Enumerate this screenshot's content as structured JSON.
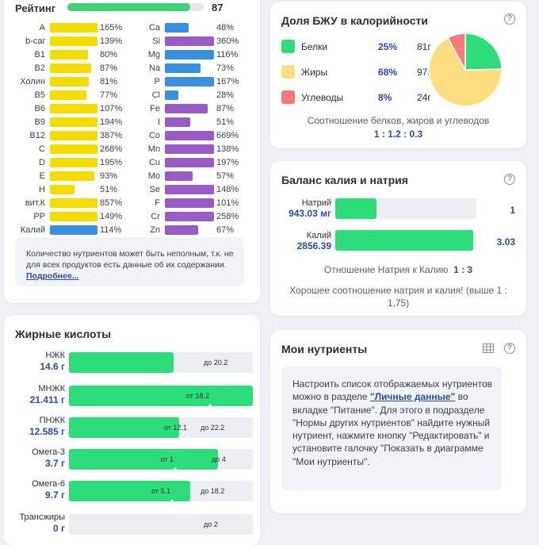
{
  "rating": {
    "label": "Рейтинг",
    "value": "87",
    "fill_fraction": 0.9
  },
  "nutrients": {
    "left": [
      {
        "name": "A",
        "pct": "165%",
        "color": "#f5dc00",
        "fill": 1.0
      },
      {
        "name": "b-car",
        "pct": "139%",
        "color": "#f5dc00",
        "fill": 1.0
      },
      {
        "name": "B1",
        "pct": "80%",
        "color": "#f5dc00",
        "fill": 0.8
      },
      {
        "name": "B2",
        "pct": "87%",
        "color": "#f5dc00",
        "fill": 0.87
      },
      {
        "name": "Холин",
        "pct": "81%",
        "color": "#f5dc00",
        "fill": 0.81
      },
      {
        "name": "B5",
        "pct": "77%",
        "color": "#f5dc00",
        "fill": 0.77
      },
      {
        "name": "B6",
        "pct": "107%",
        "color": "#f5dc00",
        "fill": 1.0
      },
      {
        "name": "B9",
        "pct": "194%",
        "color": "#f5dc00",
        "fill": 1.0
      },
      {
        "name": "B12",
        "pct": "387%",
        "color": "#f5dc00",
        "fill": 1.0
      },
      {
        "name": "C",
        "pct": "268%",
        "color": "#f5dc00",
        "fill": 1.0
      },
      {
        "name": "D",
        "pct": "195%",
        "color": "#f5dc00",
        "fill": 1.0
      },
      {
        "name": "E",
        "pct": "93%",
        "color": "#f5dc00",
        "fill": 0.93
      },
      {
        "name": "H",
        "pct": "51%",
        "color": "#f5dc00",
        "fill": 0.51
      },
      {
        "name": "вит.К",
        "pct": "857%",
        "color": "#f5dc00",
        "fill": 1.0
      },
      {
        "name": "PP",
        "pct": "149%",
        "color": "#f5dc00",
        "fill": 1.0
      },
      {
        "name": "Калий",
        "pct": "114%",
        "color": "#3b8fe0",
        "fill": 1.0
      }
    ],
    "right": [
      {
        "name": "Ca",
        "pct": "48%",
        "color": "#3b8fe0",
        "fill": 0.48
      },
      {
        "name": "Si",
        "pct": "360%",
        "color": "#9a5bc6",
        "fill": 1.0
      },
      {
        "name": "Mg",
        "pct": "116%",
        "color": "#3b8fe0",
        "fill": 1.0
      },
      {
        "name": "Na",
        "pct": "73%",
        "color": "#3b8fe0",
        "fill": 0.73
      },
      {
        "name": "P",
        "pct": "167%",
        "color": "#3b8fe0",
        "fill": 1.0
      },
      {
        "name": "Cl",
        "pct": "28%",
        "color": "#3b8fe0",
        "fill": 0.28
      },
      {
        "name": "Fe",
        "pct": "87%",
        "color": "#9a5bc6",
        "fill": 0.87
      },
      {
        "name": "I",
        "pct": "51%",
        "color": "#9a5bc6",
        "fill": 0.51
      },
      {
        "name": "Co",
        "pct": "669%",
        "color": "#9a5bc6",
        "fill": 1.0
      },
      {
        "name": "Mn",
        "pct": "138%",
        "color": "#9a5bc6",
        "fill": 1.0
      },
      {
        "name": "Cu",
        "pct": "197%",
        "color": "#9a5bc6",
        "fill": 1.0
      },
      {
        "name": "Mo",
        "pct": "57%",
        "color": "#9a5bc6",
        "fill": 0.57
      },
      {
        "name": "Se",
        "pct": "148%",
        "color": "#9a5bc6",
        "fill": 1.0
      },
      {
        "name": "F",
        "pct": "101%",
        "color": "#9a5bc6",
        "fill": 1.0
      },
      {
        "name": "Cr",
        "pct": "258%",
        "color": "#9a5bc6",
        "fill": 1.0
      },
      {
        "name": "Zn",
        "pct": "67%",
        "color": "#9a5bc6",
        "fill": 0.67
      }
    ]
  },
  "note": {
    "text": "Количество нутриентов может быть неполным, т.к. не для всех продуктов есть данные об их содержании. ",
    "link": "Подробнее..."
  },
  "fatty_acids": {
    "title": "Жирные кислоты",
    "items": [
      {
        "name": "НЖК",
        "amount": "14.6 г",
        "min": "",
        "max": "до 20.2",
        "fill": 0.57
      },
      {
        "name": "МНЖК",
        "amount": "21.411 г",
        "min": "от 18.2",
        "max": "",
        "fill": 1.0
      },
      {
        "name": "ПНЖК",
        "amount": "12.585 г",
        "min": "от 12.1",
        "max": "до 22.2",
        "fill": 0.6
      },
      {
        "name": "Омега-3",
        "amount": "3.7 г",
        "min": "от 1",
        "max": "до 4",
        "fill": 0.81
      },
      {
        "name": "Омега-6",
        "amount": "9.7 г",
        "min": "от 5.1",
        "max": "до 18.2",
        "fill": 0.66
      },
      {
        "name": "Трансжиры",
        "amount": "0 г",
        "min": "",
        "max": "до 2",
        "fill": 0.0
      }
    ]
  },
  "bju": {
    "title": "Доля БЖУ в калорийности",
    "items": [
      {
        "name": "Белки",
        "pct": "25%",
        "grams": "81г",
        "color": "#2ddd7a",
        "share": 25
      },
      {
        "name": "Жиры",
        "pct": "68%",
        "grams": "97г",
        "color": "#fddf82",
        "share": 68
      },
      {
        "name": "Углеводы",
        "pct": "8%",
        "grams": "24г",
        "color": "#f77a7a",
        "share": 8
      }
    ],
    "caption": "Соотношение белков, жиров и углеводов",
    "ratio": "1 : 1.2 : 0.3"
  },
  "kna": {
    "title": "Баланс калия и натрия",
    "sodium": {
      "label": "Натрий",
      "amount": "943.03 мг",
      "ratio": "1",
      "fill": 0.33
    },
    "potassium": {
      "label": "Калий",
      "amount": "2856.39",
      "ratio": "3.03",
      "fill": 1.0
    },
    "caption_prefix": "Отношение Натрия к Калию",
    "caption_ratio": "1 : 3",
    "verdict": "Хорошее соотношение натрия и калия! (выше 1 : 1,75)"
  },
  "my_nutrients": {
    "title": "Мои нутриенты",
    "text1": "Настроить список отображаемых нутриентов можно в разделе ",
    "link": "\"Личные данные\"",
    "text2": " во вкладке \"Питание\". Для этого в подразделе \"Нормы других нутриентов\" найдите нужный нутриент, нажмите кнопку \"Редактировать\" и установите галочку \"Показать в диаграмме \"Мои нутриенты\"."
  },
  "icons": {
    "help": "help-icon",
    "table": "table-icon"
  }
}
